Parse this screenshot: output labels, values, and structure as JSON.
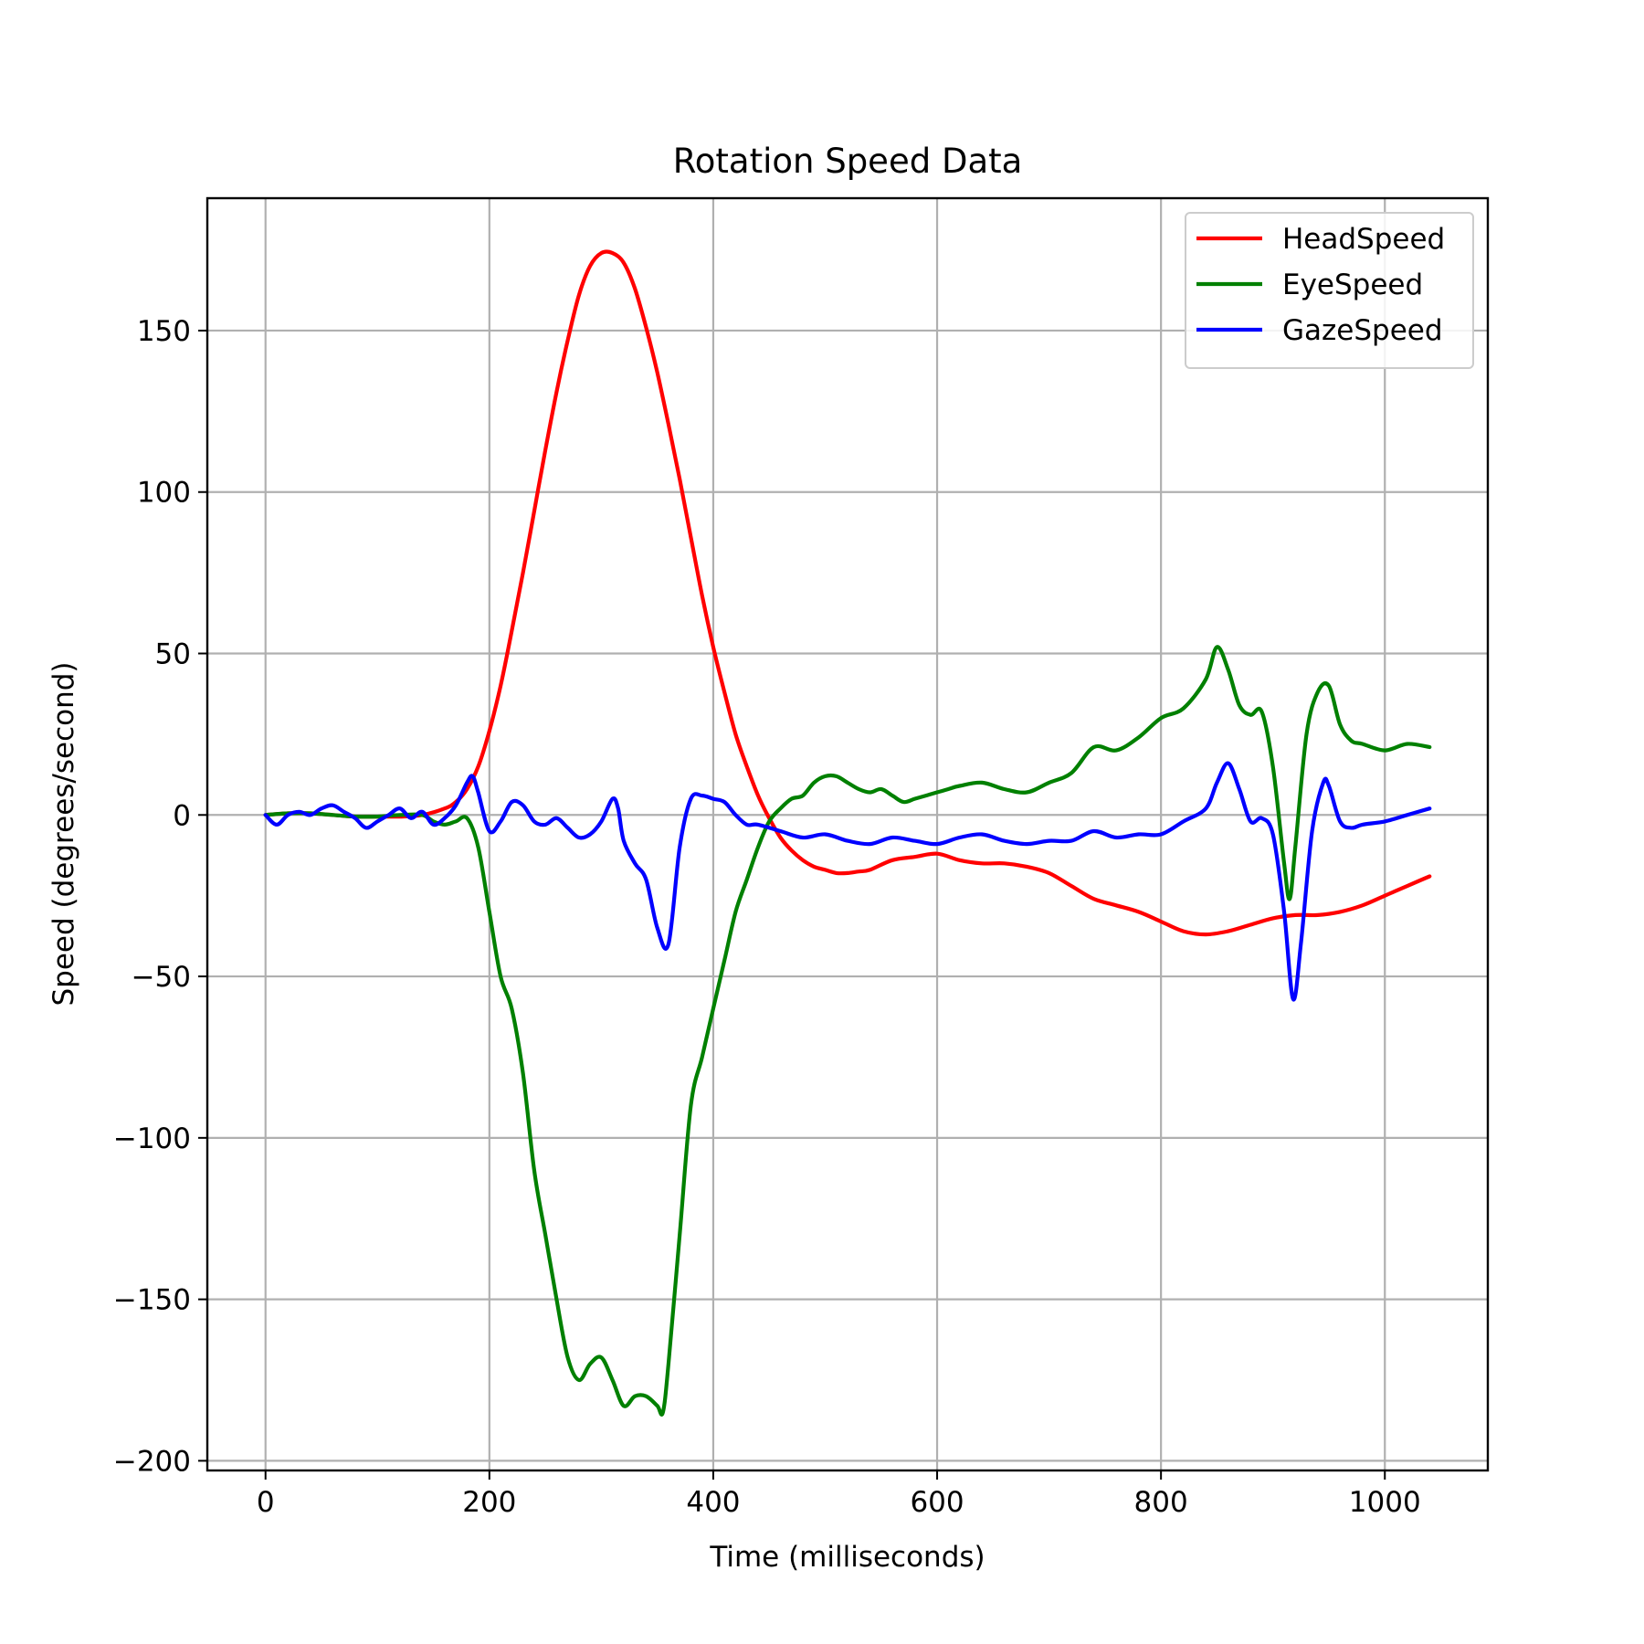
{
  "chart_data": {
    "type": "line",
    "title": "Rotation Speed Data",
    "xlabel": "Time (milliseconds)",
    "ylabel": "Speed (degrees/second)",
    "xlim": [
      -52,
      1092
    ],
    "ylim": [
      -203,
      191
    ],
    "xticks": [
      0,
      200,
      400,
      600,
      800,
      1000
    ],
    "xtick_labels": [
      "0",
      "200",
      "400",
      "600",
      "800",
      "1000"
    ],
    "yticks": [
      -200,
      -150,
      -100,
      -50,
      0,
      50,
      100,
      150
    ],
    "ytick_labels": [
      "−200",
      "−150",
      "−100",
      "−50",
      "0",
      "50",
      "100",
      "150"
    ],
    "grid": true,
    "legend_position": "top-right",
    "series": [
      {
        "name": "HeadSpeed",
        "color": "#ff0000",
        "x": [
          0,
          20,
          40,
          60,
          80,
          100,
          120,
          140,
          160,
          170,
          180,
          190,
          200,
          210,
          220,
          230,
          240,
          250,
          260,
          270,
          280,
          290,
          300,
          310,
          320,
          330,
          340,
          350,
          360,
          370,
          380,
          390,
          400,
          410,
          420,
          430,
          440,
          450,
          460,
          470,
          480,
          490,
          500,
          510,
          520,
          530,
          540,
          560,
          580,
          600,
          620,
          640,
          660,
          680,
          700,
          720,
          740,
          760,
          780,
          800,
          820,
          840,
          860,
          880,
          900,
          920,
          940,
          960,
          980,
          1000,
          1020,
          1040
        ],
        "y": [
          0,
          0.5,
          0.5,
          0,
          -0.5,
          -0.5,
          -0.5,
          0,
          2,
          4,
          8,
          15,
          26,
          40,
          57,
          75,
          94,
          113,
          131,
          147,
          161,
          170,
          174,
          174,
          171,
          163,
          151,
          137,
          121,
          104,
          86,
          68,
          52,
          38,
          25,
          15,
          6,
          -1,
          -7,
          -11,
          -14,
          -16,
          -17,
          -18,
          -18,
          -17.5,
          -17,
          -14,
          -13,
          -12,
          -14,
          -15,
          -15,
          -16,
          -18,
          -22,
          -26,
          -28,
          -30,
          -33,
          -36,
          -37,
          -36,
          -34,
          -32,
          -31,
          -31,
          -30,
          -28,
          -25,
          -22,
          -19
        ]
      },
      {
        "name": "EyeSpeed",
        "color": "#008000",
        "x": [
          0,
          20,
          40,
          60,
          80,
          100,
          120,
          140,
          150,
          160,
          170,
          180,
          190,
          200,
          210,
          220,
          230,
          240,
          250,
          260,
          270,
          280,
          290,
          300,
          310,
          320,
          330,
          340,
          350,
          355,
          360,
          370,
          380,
          390,
          400,
          410,
          420,
          430,
          440,
          450,
          460,
          470,
          480,
          490,
          500,
          510,
          520,
          530,
          540,
          550,
          560,
          570,
          580,
          590,
          600,
          610,
          620,
          640,
          660,
          680,
          700,
          720,
          740,
          760,
          780,
          800,
          820,
          840,
          850,
          860,
          870,
          880,
          890,
          900,
          910,
          915,
          920,
          930,
          940,
          950,
          960,
          970,
          980,
          1000,
          1020,
          1040
        ],
        "y": [
          0,
          0.5,
          0.5,
          0,
          -0.5,
          -0.5,
          0,
          0,
          -2,
          -3,
          -2,
          -1,
          -10,
          -30,
          -50,
          -60,
          -80,
          -110,
          -130,
          -150,
          -168,
          -175,
          -170,
          -168,
          -175,
          -183,
          -180,
          -180,
          -183,
          -185,
          -170,
          -130,
          -90,
          -75,
          -60,
          -45,
          -30,
          -20,
          -10,
          -2,
          2,
          5,
          6,
          10,
          12,
          12,
          10,
          8,
          7,
          8,
          6,
          4,
          5,
          6,
          7,
          8,
          9,
          10,
          8,
          7,
          10,
          13,
          21,
          20,
          24,
          30,
          33,
          42,
          52,
          45,
          34,
          31,
          32,
          15,
          -15,
          -26,
          -10,
          25,
          38,
          40,
          28,
          23,
          22,
          20,
          22,
          21
        ]
      },
      {
        "name": "GazeSpeed",
        "color": "#0000ff",
        "x": [
          0,
          10,
          20,
          30,
          40,
          50,
          60,
          70,
          80,
          90,
          100,
          110,
          120,
          130,
          140,
          150,
          160,
          170,
          180,
          185,
          190,
          200,
          210,
          220,
          230,
          240,
          250,
          260,
          270,
          280,
          290,
          300,
          310,
          315,
          320,
          330,
          340,
          350,
          360,
          370,
          380,
          390,
          400,
          410,
          420,
          430,
          440,
          460,
          480,
          500,
          520,
          540,
          560,
          580,
          600,
          620,
          640,
          660,
          680,
          700,
          720,
          740,
          760,
          780,
          800,
          820,
          840,
          850,
          860,
          870,
          880,
          890,
          900,
          910,
          918,
          925,
          935,
          945,
          950,
          960,
          970,
          980,
          1000,
          1020,
          1040
        ],
        "y": [
          0,
          -3,
          0,
          1,
          0,
          2,
          3,
          1,
          -1,
          -4,
          -2,
          0,
          2,
          -1,
          1,
          -3,
          -1,
          3,
          10,
          12,
          7,
          -5,
          -2,
          4,
          3,
          -2,
          -3,
          -1,
          -4,
          -7,
          -6,
          -2,
          5,
          2,
          -8,
          -15,
          -20,
          -35,
          -40,
          -10,
          5,
          6,
          5,
          4,
          0,
          -3,
          -3,
          -5,
          -7,
          -6,
          -8,
          -9,
          -7,
          -8,
          -9,
          -7,
          -6,
          -8,
          -9,
          -8,
          -8,
          -5,
          -7,
          -6,
          -6,
          -2,
          2,
          10,
          16,
          8,
          -2,
          -1,
          -6,
          -30,
          -57,
          -40,
          -5,
          10,
          9,
          -2,
          -4,
          -3,
          -2,
          0,
          2
        ]
      }
    ]
  }
}
